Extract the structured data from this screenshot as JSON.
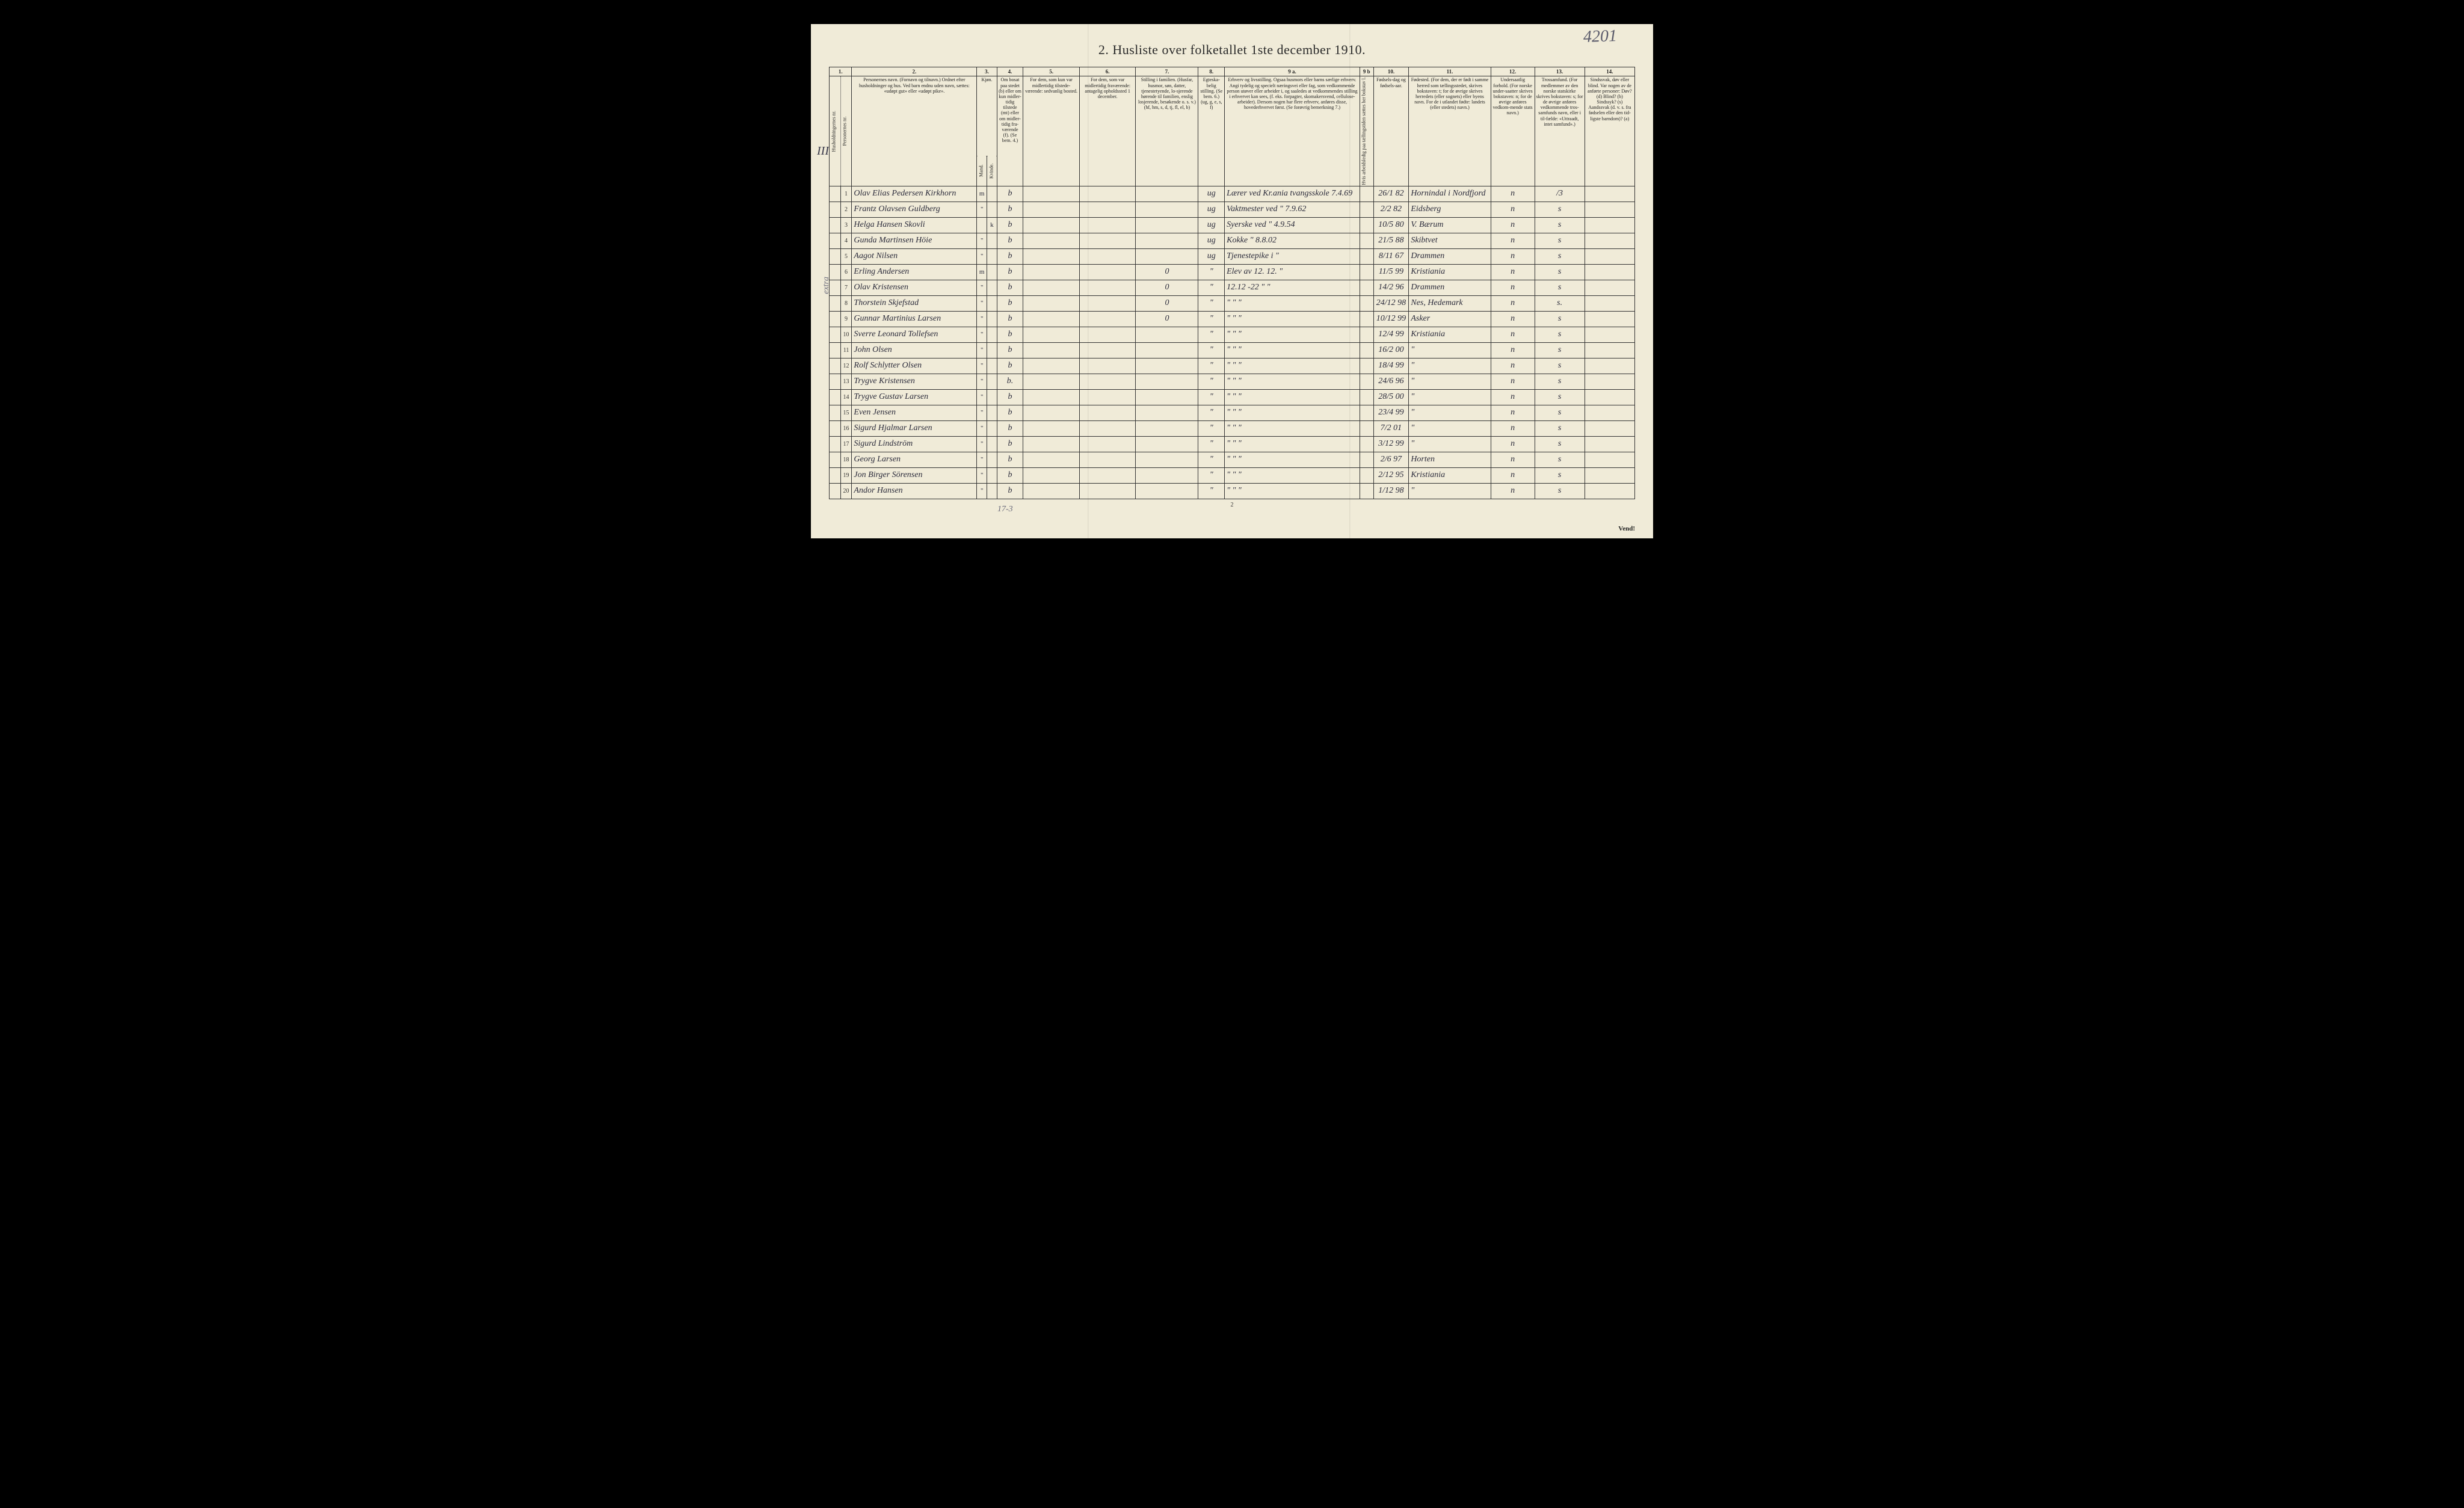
{
  "document": {
    "title": "2.  Husliste over folketallet 1ste december 1910.",
    "corner_number": "4201",
    "page_number": "2",
    "footer_right": "Vend!",
    "side_label": "III a",
    "side_note": "extra",
    "footer_count": "17-3"
  },
  "columns": {
    "nums": [
      "1.",
      "2.",
      "3.",
      "4.",
      "5.",
      "6.",
      "7.",
      "8.",
      "9 a.",
      "9 b",
      "10.",
      "11.",
      "12.",
      "13.",
      "14."
    ],
    "headers": {
      "c1": "Husholdningernes nr.",
      "c2": "Personernes nr.",
      "c3": "Personernes navn.\n(Fornavn og tilnavn.)\nOrdnet efter husholdninger og hus.\nVed barn endnu uden navn, sættes: «udøpt gut» eller «udøpt pike».",
      "c4": "Kjøn.",
      "c4a": "Mand.",
      "c4b": "Kvinde.",
      "c4c": "m. k.",
      "c5": "Om bosat paa stedet (b) eller om kun midler-tidig tilstede (mt) eller om midler-tidig fra-værende (f). (Se bem. 4.)",
      "c6": "For dem, som kun var midlertidig tilstede-værende:\nsedvanlig bosted.",
      "c7": "For dem, som var midlertidig fraværende:\nantagelig opholdssted 1 december.",
      "c8": "Stilling i familien.\n(Husfar, husmor, søn, datter, tjenestetyende, lo-sjerende hørende til familien, enslig losjerende, besøkende o. s. v.)\n(hf, hm, s, d, tj, fl, el, b)",
      "c9": "Egteska-belig stilling. (Se bem. 6.) (ug, g, e, s, f)",
      "c10": "Erhverv og livsstilling.\nOgsaa husmors eller barns særlige erhverv. Angi tydelig og specielt næringsvei eller fag, som vedkommende person utøver eller arbeider i, og saaledes at vedkommendes stilling i erhvervet kan sees, (f. eks. forpagter, skomakersvend, cellulose-arbeider). Dersom nogen har flere erhverv, anføres disse, hovederhvervet først.\n(Se forøvrig bemerkning 7.)",
      "c10b": "Hvis arbeidsledig paa tællingstiden sættes her bokstav l.",
      "c11": "Fødsels-dag og fødsels-aar.",
      "c12": "Fødested.\n(For dem, der er født i samme herred som tællingsstedet, skrives bokstaven: t; for de øvrige skrives herredets (eller sognets) eller byens navn. For de i utlandet fødte: landets (eller stedets) navn.)",
      "c13": "Undersaatlig forhold.\n(For norske under-saatter skrives bokstaven: n; for de øvrige anføres vedkom-mende stats navn.)",
      "c14": "Trossamfund.\n(For medlemmer av den norske statskirke skrives bokstaven: s; for de øvrige anføres vedkommende tros-samfunds navn, eller i til-fælde: «Uttraadt, intet samfund».)",
      "c15": "Sindssvak, døv eller blind.\nVar nogen av de anførte personer:\nDøv? (d)\nBlind? (b)\nSindssyk? (s)\nAandssvak (d. v. s. fra fødselen eller den tid-ligste barndom)? (a)"
    }
  },
  "rows": [
    {
      "n": "1",
      "name": "Olav Elias Pedersen Kirkhorn",
      "sex": "m",
      "res": "b",
      "fam": "",
      "mar": "ug",
      "occ": "Lærer ved Kr.ania tvangsskole",
      "occ_note": "7.4.69",
      "dob": "26/1 82",
      "birthplace": "Hornindal i Nordfjord",
      "nat": "n",
      "rel": "/3"
    },
    {
      "n": "2",
      "name": "Frantz Olavsen Guldberg",
      "sex": "\"",
      "res": "b",
      "fam": "",
      "mar": "ug",
      "occ": "Vaktmester ved  \"",
      "occ_note": "7.9.62",
      "dob": "2/2 82",
      "birthplace": "Eidsberg",
      "nat": "n",
      "rel": "s"
    },
    {
      "n": "3",
      "name": "Helga Hansen Skovli",
      "sex": "k",
      "res": "b",
      "fam": "",
      "mar": "ug",
      "occ": "Syerske ved \"",
      "occ_note": "4.9.54",
      "dob": "10/5 80",
      "birthplace": "V. Bærum",
      "nat": "n",
      "rel": "s"
    },
    {
      "n": "4",
      "name": "Gunda Martinsen Höie",
      "sex": "\"",
      "res": "b",
      "fam": "",
      "mar": "ug",
      "occ": "Kokke  \"",
      "occ_note": "8.8.02",
      "dob": "21/5 88",
      "birthplace": "Skibtvet",
      "nat": "n",
      "rel": "s"
    },
    {
      "n": "5",
      "name": "Aagot Nilsen",
      "sex": "\"",
      "res": "b",
      "fam": "",
      "mar": "ug",
      "occ": "Tjenestepike i  \"",
      "occ_note": "",
      "dob": "8/11 67",
      "birthplace": "Drammen",
      "nat": "n",
      "rel": "s"
    },
    {
      "n": "6",
      "name": "Erling Andersen",
      "sex": "m",
      "res": "b",
      "fam": "0",
      "mar": "\"",
      "occ": "Elev av 12. 12. \"",
      "occ_note": "",
      "dob": "11/5 99",
      "birthplace": "Kristiania",
      "nat": "n",
      "rel": "s"
    },
    {
      "n": "7",
      "name": "Olav Kristensen",
      "sex": "\"",
      "res": "b",
      "fam": "0",
      "mar": "\"",
      "occ": "12.12 -22 \"  \"",
      "occ_note": "",
      "dob": "14/2 96",
      "birthplace": "Drammen",
      "nat": "n",
      "rel": "s"
    },
    {
      "n": "8",
      "name": "Thorstein Skjefstad",
      "sex": "\"",
      "res": "b",
      "fam": "0",
      "mar": "\"",
      "occ": "\"  \"  \"",
      "occ_note": "",
      "dob": "24/12 98",
      "birthplace": "Nes, Hedemark",
      "nat": "n",
      "rel": "s."
    },
    {
      "n": "9",
      "name": "Gunnar Martinius Larsen",
      "sex": "\"",
      "res": "b",
      "fam": "0",
      "mar": "\"",
      "occ": "\"  \"  \"",
      "occ_note": "",
      "dob": "10/12 99",
      "birthplace": "Asker",
      "nat": "n",
      "rel": "s"
    },
    {
      "n": "10",
      "name": "Sverre Leonard Tollefsen",
      "sex": "\"",
      "res": "b",
      "fam": "",
      "mar": "\"",
      "occ": "\"  \"  \"",
      "occ_note": "",
      "dob": "12/4 99",
      "birthplace": "Kristiania",
      "nat": "n",
      "rel": "s"
    },
    {
      "n": "11",
      "name": "John Olsen",
      "sex": "\"",
      "res": "b",
      "fam": "",
      "mar": "\"",
      "occ": "\"  \"  \"",
      "occ_note": "",
      "dob": "16/2 00",
      "birthplace": "\"",
      "nat": "n",
      "rel": "s"
    },
    {
      "n": "12",
      "name": "Rolf Schlytter Olsen",
      "sex": "\"",
      "res": "b",
      "fam": "",
      "mar": "\"",
      "occ": "\"  \"  \"",
      "occ_note": "",
      "dob": "18/4 99",
      "birthplace": "\"",
      "nat": "n",
      "rel": "s"
    },
    {
      "n": "13",
      "name": "Trygve Kristensen",
      "sex": "\"",
      "res": "b.",
      "fam": "",
      "mar": "\"",
      "occ": "\"  \"  \"",
      "occ_note": "",
      "dob": "24/6 96",
      "birthplace": "\"",
      "nat": "n",
      "rel": "s"
    },
    {
      "n": "14",
      "name": "Trygve Gustav Larsen",
      "sex": "\"",
      "res": "b",
      "fam": "",
      "mar": "\"",
      "occ": "\"  \"  \"",
      "occ_note": "",
      "dob": "28/5 00",
      "birthplace": "\"",
      "nat": "n",
      "rel": "s"
    },
    {
      "n": "15",
      "name": "Even Jensen",
      "sex": "\"",
      "res": "b",
      "fam": "",
      "mar": "\"",
      "occ": "\"  \"  \"",
      "occ_note": "",
      "dob": "23/4 99",
      "birthplace": "\"",
      "nat": "n",
      "rel": "s"
    },
    {
      "n": "16",
      "name": "Sigurd Hjalmar Larsen",
      "sex": "\"",
      "res": "b",
      "fam": "",
      "mar": "\"",
      "occ": "\"  \"  \"",
      "occ_note": "",
      "dob": "7/2 01",
      "birthplace": "\"",
      "nat": "n",
      "rel": "s"
    },
    {
      "n": "17",
      "name": "Sigurd Lindström",
      "sex": "\"",
      "res": "b",
      "fam": "",
      "mar": "\"",
      "occ": "\"  \"  \"",
      "occ_note": "",
      "dob": "3/12 99",
      "birthplace": "\"",
      "nat": "n",
      "rel": "s"
    },
    {
      "n": "18",
      "name": "Georg Larsen",
      "sex": "\"",
      "res": "b",
      "fam": "",
      "mar": "\"",
      "occ": "\"  \"  \"",
      "occ_note": "",
      "dob": "2/6 97",
      "birthplace": "Horten",
      "nat": "n",
      "rel": "s"
    },
    {
      "n": "19",
      "name": "Jon Birger Sörensen",
      "sex": "\"",
      "res": "b",
      "fam": "",
      "mar": "\"",
      "occ": "\"  \"  \"",
      "occ_note": "",
      "dob": "2/12 95",
      "birthplace": "Kristiania",
      "nat": "n",
      "rel": "s"
    },
    {
      "n": "20",
      "name": "Andor Hansen",
      "sex": "\"",
      "res": "b",
      "fam": "",
      "mar": "\"",
      "occ": "\"  \"  \"",
      "occ_note": "",
      "dob": "1/12 98",
      "birthplace": "\"",
      "nat": "n",
      "rel": "s"
    }
  ],
  "styling": {
    "page_bg": "#f0ebd8",
    "body_bg": "#000000",
    "border": "#333333",
    "text": "#222222",
    "handwriting": "#2a2a3a",
    "pencil": "#6a6a7a",
    "title_fontsize": 22,
    "cell_fontsize": 14,
    "header_fontsize": 8
  }
}
